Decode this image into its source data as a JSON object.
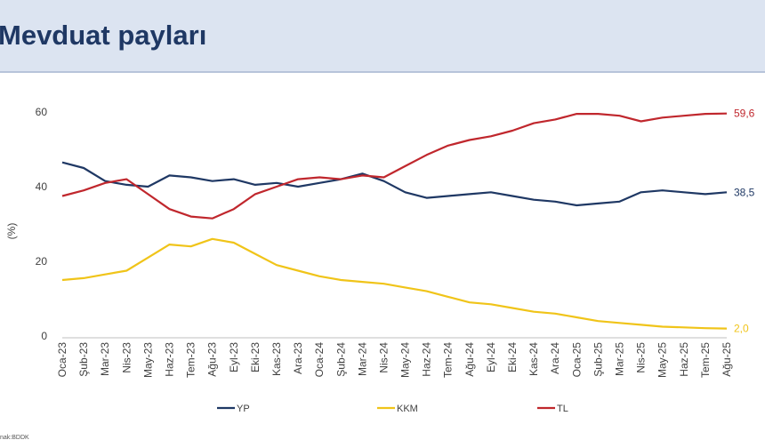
{
  "title": "Mevduat payları",
  "source": "nak:BDDK",
  "chart_data": {
    "type": "line",
    "ylabel": "(%)",
    "ylim": [
      0,
      65
    ],
    "yticks": [
      0,
      20,
      40,
      60
    ],
    "x_labels": [
      "Oca-23",
      "Şub-23",
      "Mar-23",
      "Nis-23",
      "May-23",
      "Haz-23",
      "Tem-23",
      "Ağu-23",
      "Eyl-23",
      "Eki-23",
      "Kas-23",
      "Ara-23",
      "Oca-24",
      "Şub-24",
      "Mar-24",
      "Nis-24",
      "May-24",
      "Haz-24",
      "Tem-24",
      "Ağu-24",
      "Eyl-24",
      "Eki-24",
      "Kas-24",
      "Ara-24",
      "Oca-25",
      "Şub-25",
      "Mar-25",
      "Nis-25",
      "May-25",
      "Haz-25",
      "Tem-25",
      "Ağu-25"
    ],
    "legend_position": "bottom",
    "series": [
      {
        "name": "YP",
        "color": "#1f3864",
        "end_label": "38,5",
        "values": [
          46.5,
          45.0,
          41.5,
          40.5,
          40.0,
          43.0,
          42.5,
          41.5,
          42.0,
          40.5,
          41.0,
          40.0,
          41.0,
          42.0,
          43.5,
          41.5,
          38.5,
          37.0,
          37.5,
          38.0,
          38.5,
          37.5,
          36.5,
          36.0,
          35.0,
          35.5,
          36.0,
          38.5,
          39.0,
          38.5,
          38.0,
          38.5
        ]
      },
      {
        "name": "KKM",
        "color": "#f0c419",
        "end_label": "2,0",
        "values": [
          15.0,
          15.5,
          16.5,
          17.5,
          21.0,
          24.5,
          24.0,
          26.0,
          25.0,
          22.0,
          19.0,
          17.5,
          16.0,
          15.0,
          14.5,
          14.0,
          13.0,
          12.0,
          10.5,
          9.0,
          8.5,
          7.5,
          6.5,
          6.0,
          5.0,
          4.0,
          3.5,
          3.0,
          2.5,
          2.3,
          2.1,
          2.0
        ]
      },
      {
        "name": "TL",
        "color": "#c0272d",
        "end_label": "59,6",
        "values": [
          37.5,
          39.0,
          41.0,
          42.0,
          38.0,
          34.0,
          32.0,
          31.5,
          34.0,
          38.0,
          40.0,
          42.0,
          42.5,
          42.0,
          43.0,
          42.5,
          45.5,
          48.5,
          51.0,
          52.5,
          53.5,
          55.0,
          57.0,
          58.0,
          59.5,
          59.5,
          59.0,
          57.5,
          58.5,
          59.0,
          59.5,
          59.6
        ]
      }
    ]
  }
}
